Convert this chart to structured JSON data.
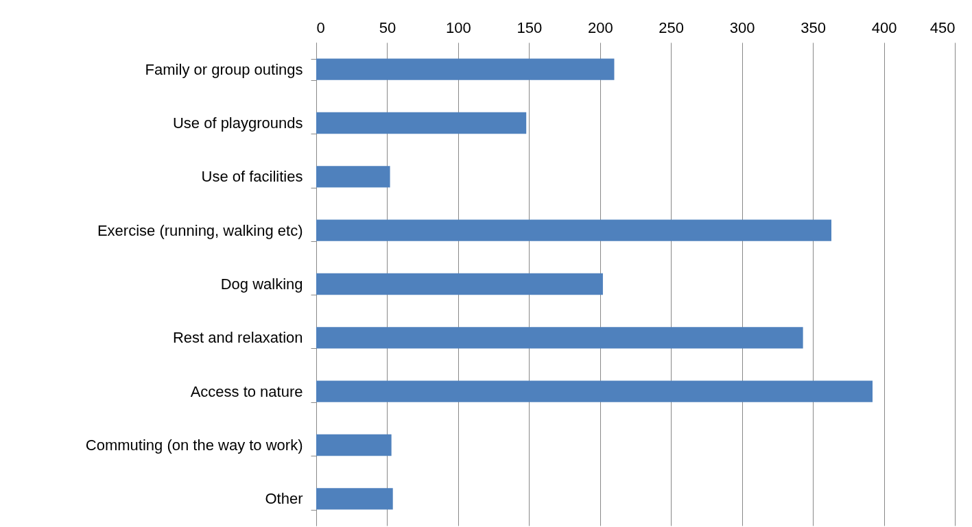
{
  "chart_data": {
    "type": "bar",
    "orientation": "horizontal",
    "categories": [
      "Family or group outings",
      "Use of playgrounds",
      "Use of facilities",
      "Exercise (running, walking etc)",
      "Dog walking",
      "Rest and relaxation",
      "Access to nature",
      "Commuting (on the way to work)",
      "Other"
    ],
    "values": [
      210,
      148,
      52,
      363,
      202,
      343,
      392,
      53,
      54
    ],
    "color": "#4f81bd",
    "xlim": [
      0,
      450
    ],
    "xticks": [
      0,
      50,
      100,
      150,
      200,
      250,
      300,
      350,
      400,
      450
    ],
    "grid": "x"
  }
}
